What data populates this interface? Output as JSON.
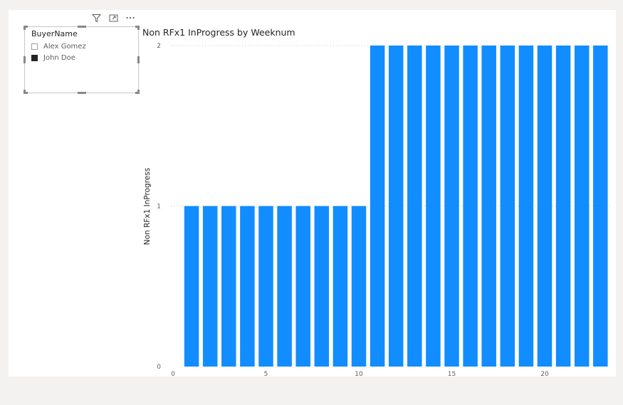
{
  "slicer": {
    "title": "BuyerName",
    "items": [
      {
        "label": "Alex Gomez",
        "checked": false
      },
      {
        "label": "John Doe",
        "checked": true
      }
    ]
  },
  "header_icons": [
    "filter-icon",
    "focus-mode-icon",
    "more-options-icon"
  ],
  "chart_data": {
    "type": "bar",
    "title": "Non RFx1 InProgress by Weeknum",
    "xlabel": "",
    "ylabel": "Non RFx1 InProgress",
    "x": [
      1,
      2,
      3,
      4,
      5,
      6,
      7,
      8,
      9,
      10,
      11,
      12,
      13,
      14,
      15,
      16,
      17,
      18,
      19,
      20,
      21,
      22,
      23
    ],
    "values": [
      1,
      1,
      1,
      1,
      1,
      1,
      1,
      1,
      1,
      1,
      2,
      2,
      2,
      2,
      2,
      2,
      2,
      2,
      2,
      2,
      2,
      2,
      2
    ],
    "xlim": [
      0,
      23.5
    ],
    "ylim": [
      0,
      2
    ],
    "xticks": [
      "0",
      "5",
      "10",
      "15",
      "20"
    ],
    "yticks": [
      "0",
      "1",
      "2"
    ],
    "bar_color": "#118dff",
    "gridlines": "dotted",
    "legend": "none"
  }
}
